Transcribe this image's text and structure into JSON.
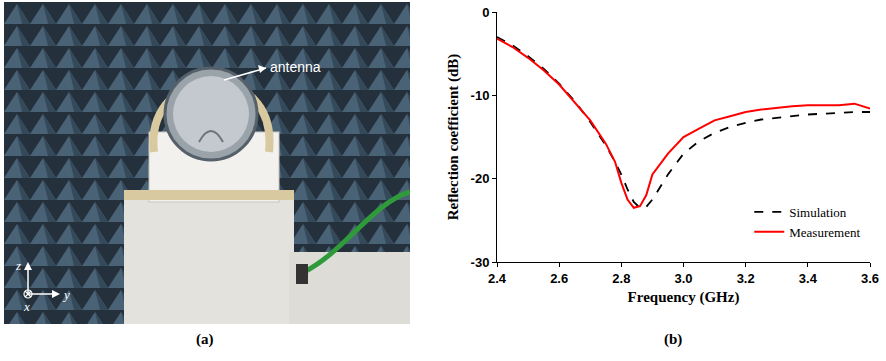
{
  "photo": {
    "panel_label": "(a)",
    "annotation": "antenna",
    "axes": {
      "up": "z",
      "into": "x",
      "right": "y"
    }
  },
  "chart_data": {
    "type": "line",
    "panel_label": "(b)",
    "x_label": "Frequency (GHz)",
    "y_label": "Reflection coefficient (dB)",
    "x": [
      2.4,
      2.45,
      2.5,
      2.55,
      2.6,
      2.65,
      2.7,
      2.75,
      2.78,
      2.8,
      2.82,
      2.84,
      2.86,
      2.88,
      2.9,
      2.95,
      3.0,
      3.05,
      3.1,
      3.15,
      3.2,
      3.25,
      3.3,
      3.35,
      3.4,
      3.45,
      3.5,
      3.55,
      3.6
    ],
    "series": [
      {
        "name": "Simulation",
        "color": "#000000",
        "line_style": "dashed",
        "values": [
          -3.0,
          -4.0,
          -5.3,
          -6.8,
          -8.6,
          -10.7,
          -13.2,
          -16.0,
          -18.0,
          -19.5,
          -21.3,
          -22.8,
          -23.5,
          -23.4,
          -22.5,
          -19.5,
          -17.0,
          -15.5,
          -14.5,
          -13.8,
          -13.3,
          -12.9,
          -12.7,
          -12.5,
          -12.3,
          -12.2,
          -12.1,
          -12.0,
          -12.0
        ]
      },
      {
        "name": "Measurement",
        "color": "#ff0000",
        "line_style": "solid",
        "values": [
          -3.2,
          -4.2,
          -5.5,
          -7.0,
          -8.7,
          -10.8,
          -13.0,
          -15.8,
          -18.0,
          -20.5,
          -22.5,
          -23.5,
          -23.3,
          -22.0,
          -19.5,
          -17.0,
          -15.0,
          -14.0,
          -13.0,
          -12.5,
          -12.0,
          -11.7,
          -11.5,
          -11.3,
          -11.2,
          -11.2,
          -11.2,
          -11.0,
          -11.6
        ]
      }
    ],
    "xlim": [
      2.4,
      3.6
    ],
    "xticks": [
      2.4,
      2.6,
      2.8,
      {
        "value": 3,
        "label": "3.0"
      },
      3.2,
      3.4,
      3.6
    ],
    "ylim": [
      -30,
      0
    ],
    "yticks": [
      -30,
      -20,
      -10,
      0
    ],
    "grid": false,
    "legend": "bottom right"
  }
}
